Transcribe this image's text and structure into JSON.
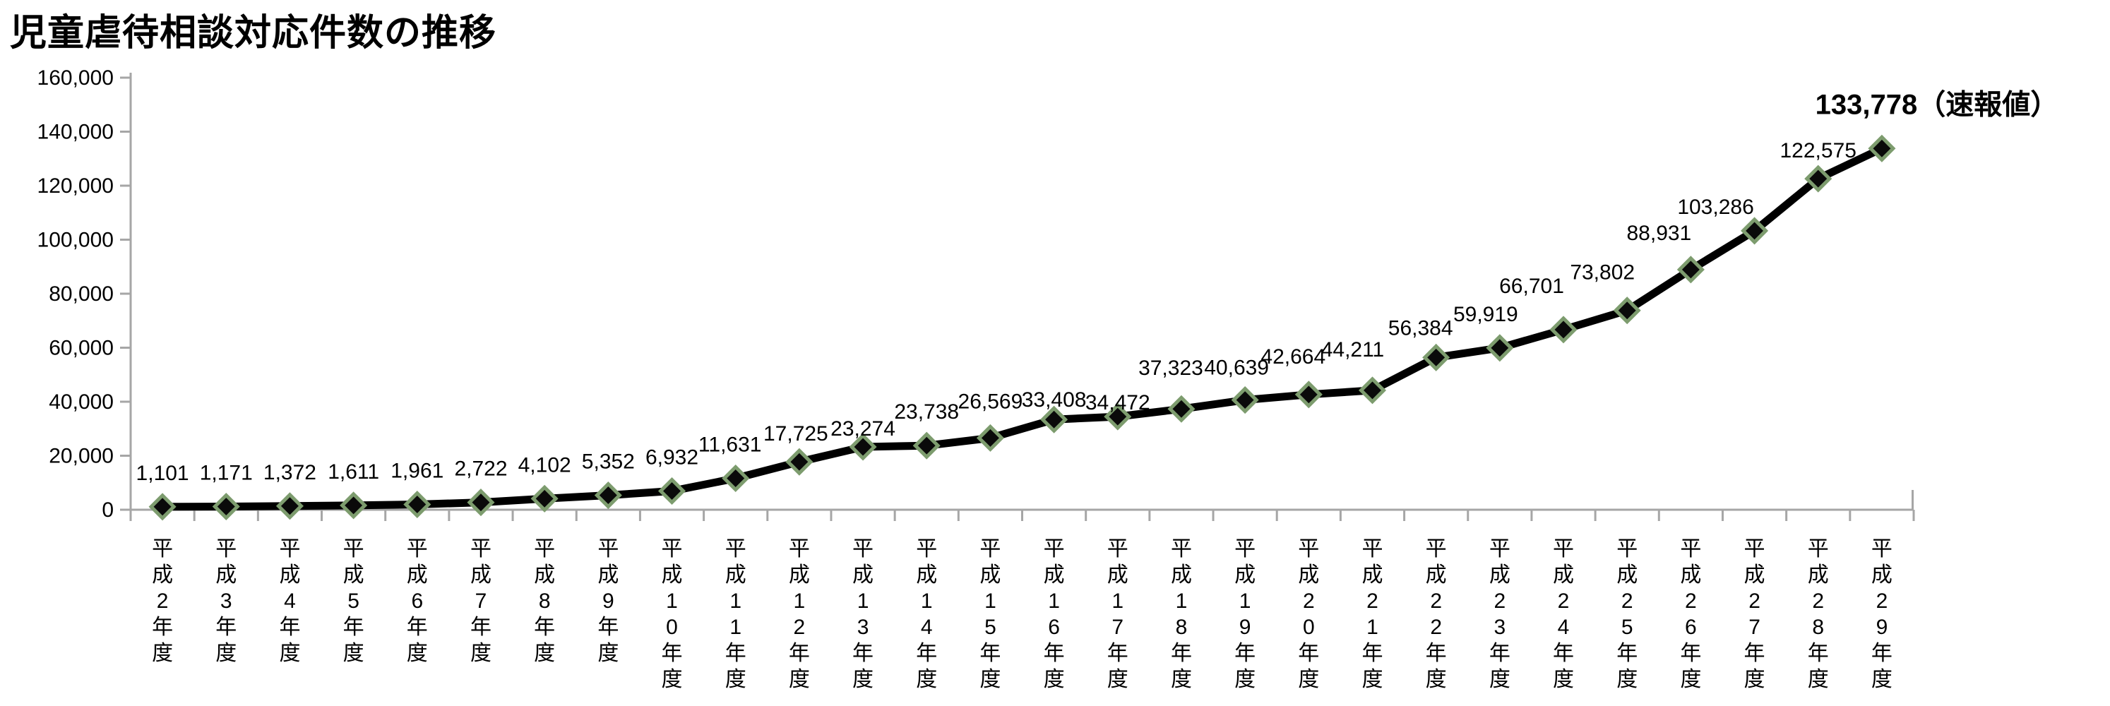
{
  "page": {
    "background": "#ffffff"
  },
  "chart_data": {
    "type": "line",
    "title": "児童虐待相談対応件数の推移",
    "categories": [
      "平成2年度",
      "平成3年度",
      "平成4年度",
      "平成5年度",
      "平成6年度",
      "平成7年度",
      "平成8年度",
      "平成9年度",
      "平成10年度",
      "平成11年度",
      "平成12年度",
      "平成13年度",
      "平成14年度",
      "平成15年度",
      "平成16年度",
      "平成17年度",
      "平成18年度",
      "平成19年度",
      "平成20年度",
      "平成21年度",
      "平成22年度",
      "平成23年度",
      "平成24年度",
      "平成25年度",
      "平成26年度",
      "平成27年度",
      "平成28年度",
      "平成29年度"
    ],
    "values": [
      1101,
      1171,
      1372,
      1611,
      1961,
      2722,
      4102,
      5352,
      6932,
      11631,
      17725,
      23274,
      23738,
      26569,
      33408,
      34472,
      37323,
      40639,
      42664,
      44211,
      56384,
      59919,
      66701,
      73802,
      88931,
      103286,
      122575,
      133778
    ],
    "point_labels": [
      "1,101",
      "1,171",
      "1,372",
      "1,611",
      "1,961",
      "2,722",
      "4,102",
      "5,352",
      "6,932",
      "11,631",
      "17,725",
      "23,274",
      "23,738",
      "26,569",
      "33,408",
      "34,472",
      "37,323",
      "40,639",
      "42,664",
      "44,211",
      "56,384",
      "59,919",
      "66,701",
      "73,802",
      "88,931",
      "103,286",
      "122,575",
      "133,778（速報値）"
    ],
    "final_label_bold": true,
    "xlabel": "",
    "ylabel": "",
    "ylim": [
      0,
      160000
    ],
    "ytick_step": 20000,
    "ytick_labels": [
      "0",
      "20,000",
      "40,000",
      "60,000",
      "80,000",
      "100,000",
      "120,000",
      "140,000",
      "160,000"
    ],
    "grid": false,
    "legend": "none",
    "colors": {
      "line": "#000000",
      "marker_fill": "#0a0a0a",
      "marker_border": "#7d9c6e",
      "axis": "#a6a6a6",
      "label_text": "#000000",
      "tick_text": "#000000"
    },
    "label_offsets": {
      "dx": [
        0,
        0,
        0,
        0,
        0,
        0,
        0,
        0,
        0,
        -8,
        -5,
        0,
        0,
        0,
        0,
        0,
        -15,
        -12,
        -22,
        -28,
        -22,
        -20,
        -45,
        -35,
        -45,
        -55,
        0,
        78
      ],
      "dy": [
        0,
        0,
        0,
        0,
        0,
        0,
        0,
        0,
        0,
        0,
        8,
        22,
        0,
        -4,
        20,
        28,
        -10,
        2,
        -6,
        -10,
        6,
        0,
        -14,
        -6,
        -4,
        14,
        8,
        -11
      ]
    }
  }
}
